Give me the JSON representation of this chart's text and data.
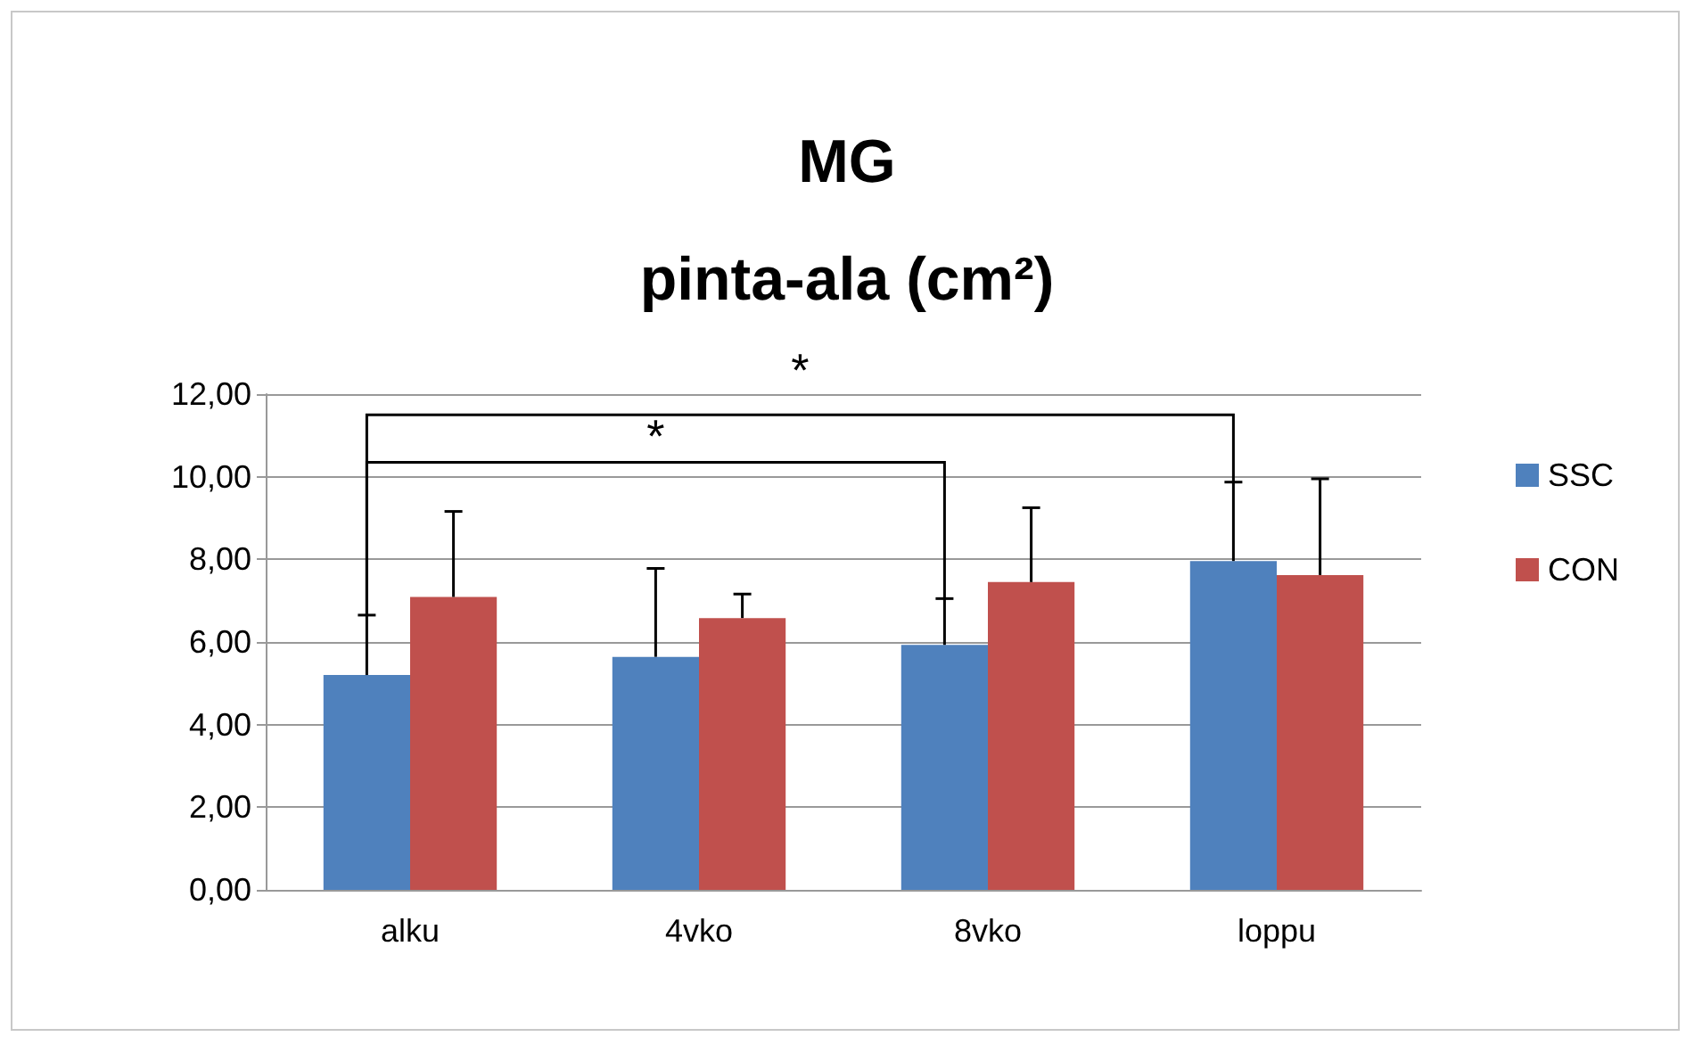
{
  "chart_data": {
    "type": "bar",
    "title": "MG",
    "subtitle": "pinta-ala (cm²)",
    "categories": [
      "alku",
      "4vko",
      "8vko",
      "loppu"
    ],
    "series": [
      {
        "name": "SSC",
        "color": "#4f81bd",
        "values": [
          5.2,
          5.64,
          5.93,
          7.96
        ],
        "errors": [
          [
            5.2,
            6.65
          ],
          [
            5.64,
            7.78
          ],
          [
            5.93,
            7.05
          ],
          [
            7.96,
            9.87
          ]
        ]
      },
      {
        "name": "CON",
        "color": "#c0504d",
        "values": [
          7.09,
          6.58,
          7.45,
          7.62
        ],
        "errors": [
          [
            7.09,
            9.16
          ],
          [
            6.58,
            7.16
          ],
          [
            7.45,
            9.25
          ],
          [
            7.62,
            9.95
          ]
        ]
      }
    ],
    "ylim": [
      0,
      12
    ],
    "yticks": [
      {
        "value": 0,
        "label": "0,00"
      },
      {
        "value": 2,
        "label": "2,00"
      },
      {
        "value": 4,
        "label": "4,00"
      },
      {
        "value": 6,
        "label": "6,00"
      },
      {
        "value": 8,
        "label": "8,00"
      },
      {
        "value": 10,
        "label": "10,00"
      },
      {
        "value": 12,
        "label": "12,00"
      }
    ],
    "grid": "y",
    "legend": "right",
    "annotations": [
      "*",
      "*"
    ]
  }
}
